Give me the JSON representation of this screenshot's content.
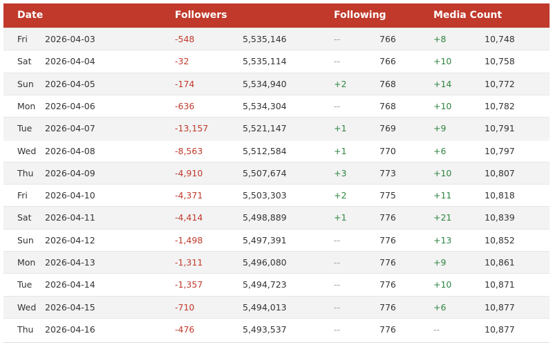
{
  "table": {
    "headers": [
      "Date",
      "Followers",
      "Following",
      "Media Count"
    ],
    "rows": [
      [
        "Fri",
        "2026-04-03",
        "-548",
        "5,535,146",
        "--",
        "766",
        "+8",
        "10,748"
      ],
      [
        "Sat",
        "2026-04-04",
        "-32",
        "5,535,114",
        "--",
        "766",
        "+10",
        "10,758"
      ],
      [
        "Sun",
        "2026-04-05",
        "-174",
        "5,534,940",
        "+2",
        "768",
        "+14",
        "10,772"
      ],
      [
        "Mon",
        "2026-04-06",
        "-636",
        "5,534,304",
        "--",
        "768",
        "+10",
        "10,782"
      ],
      [
        "Tue",
        "2026-04-07",
        "-13,157",
        "5,521,147",
        "+1",
        "769",
        "+9",
        "10,791"
      ],
      [
        "Wed",
        "2026-04-08",
        "-8,563",
        "5,512,584",
        "+1",
        "770",
        "+6",
        "10,797"
      ],
      [
        "Thu",
        "2026-04-09",
        "-4,910",
        "5,507,674",
        "+3",
        "773",
        "+10",
        "10,807"
      ],
      [
        "Fri",
        "2026-04-10",
        "-4,371",
        "5,503,303",
        "+2",
        "775",
        "+11",
        "10,818"
      ],
      [
        "Sat",
        "2026-04-11",
        "-4,414",
        "5,498,889",
        "+1",
        "776",
        "+21",
        "10,839"
      ],
      [
        "Sun",
        "2026-04-12",
        "-1,498",
        "5,497,391",
        "--",
        "776",
        "+13",
        "10,852"
      ],
      [
        "Mon",
        "2026-04-13",
        "-1,311",
        "5,496,080",
        "--",
        "776",
        "+9",
        "10,861"
      ],
      [
        "Tue",
        "2026-04-14",
        "-1,357",
        "5,494,723",
        "--",
        "776",
        "+10",
        "10,871"
      ],
      [
        "Wed",
        "2026-04-15",
        "-710",
        "5,494,013",
        "--",
        "776",
        "+6",
        "10,877"
      ],
      [
        "Thu",
        "2026-04-16",
        "-476",
        "5,493,537",
        "--",
        "776",
        "--",
        "10,877"
      ]
    ]
  }
}
